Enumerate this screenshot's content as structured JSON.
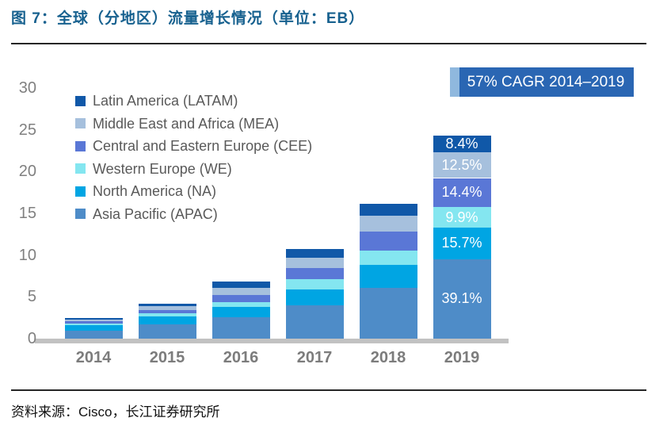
{
  "header": {
    "title": "图 7：全球（分地区）流量增长情况（单位：EB）"
  },
  "footer": {
    "source": "资料来源：Cisco，长江证券研究所"
  },
  "annotation": {
    "cagr_label": "57% CAGR 2014–2019"
  },
  "colors": {
    "title_text": "#17618F",
    "axis_text": "#808080",
    "legend_text": "#595959",
    "baseline": "#C2C2C2",
    "cagr_box": "#2A66B3",
    "cagr_stripe": "#8FB8DE",
    "segment_label_text": "#FFFFFF"
  },
  "chart_data": {
    "type": "bar",
    "stacked": true,
    "unit": "EB",
    "categories": [
      "2014",
      "2015",
      "2016",
      "2017",
      "2018",
      "2019"
    ],
    "totals": [
      2.5,
      4.2,
      6.8,
      10.7,
      16.1,
      24.3
    ],
    "series": [
      {
        "name": "Asia Pacific (APAC)",
        "color": "#4E8CC8",
        "values": [
          0.95,
          1.7,
          2.6,
          4.0,
          6.1,
          9.5
        ],
        "label_2019": "39.1%"
      },
      {
        "name": "North America (NA)",
        "color": "#00A5E3",
        "values": [
          0.65,
          1.0,
          1.2,
          1.9,
          2.7,
          3.82
        ],
        "label_2019": "15.7%"
      },
      {
        "name": "Western Europe (WE)",
        "color": "#84E6F0",
        "values": [
          0.2,
          0.35,
          0.6,
          1.25,
          1.75,
          2.41
        ],
        "label_2019": "9.9%"
      },
      {
        "name": "Central and Eastern Europe (CEE)",
        "color": "#5A77D6",
        "values": [
          0.25,
          0.4,
          0.8,
          1.3,
          2.3,
          3.5
        ],
        "label_2019": "14.4%"
      },
      {
        "name": "Middle East and Africa (MEA)",
        "color": "#A6C0DD",
        "values": [
          0.25,
          0.4,
          0.9,
          1.2,
          1.85,
          3.04
        ],
        "label_2019": "12.5%"
      },
      {
        "name": "Latin America (LATAM)",
        "color": "#1058A8",
        "values": [
          0.2,
          0.35,
          0.7,
          1.05,
          1.4,
          2.04
        ],
        "label_2019": "8.4%"
      }
    ],
    "legend_order": [
      "Latin America (LATAM)",
      "Middle East and Africa (MEA)",
      "Central and Eastern Europe (CEE)",
      "Western Europe (WE)",
      "North America (NA)",
      "Asia Pacific (APAC)"
    ],
    "yticks": [
      0,
      5,
      10,
      15,
      20,
      25,
      30
    ],
    "ylim": [
      0,
      30
    ],
    "grid": false,
    "legend_position": "upper-left",
    "annotation": "57% CAGR 2014–2019"
  }
}
